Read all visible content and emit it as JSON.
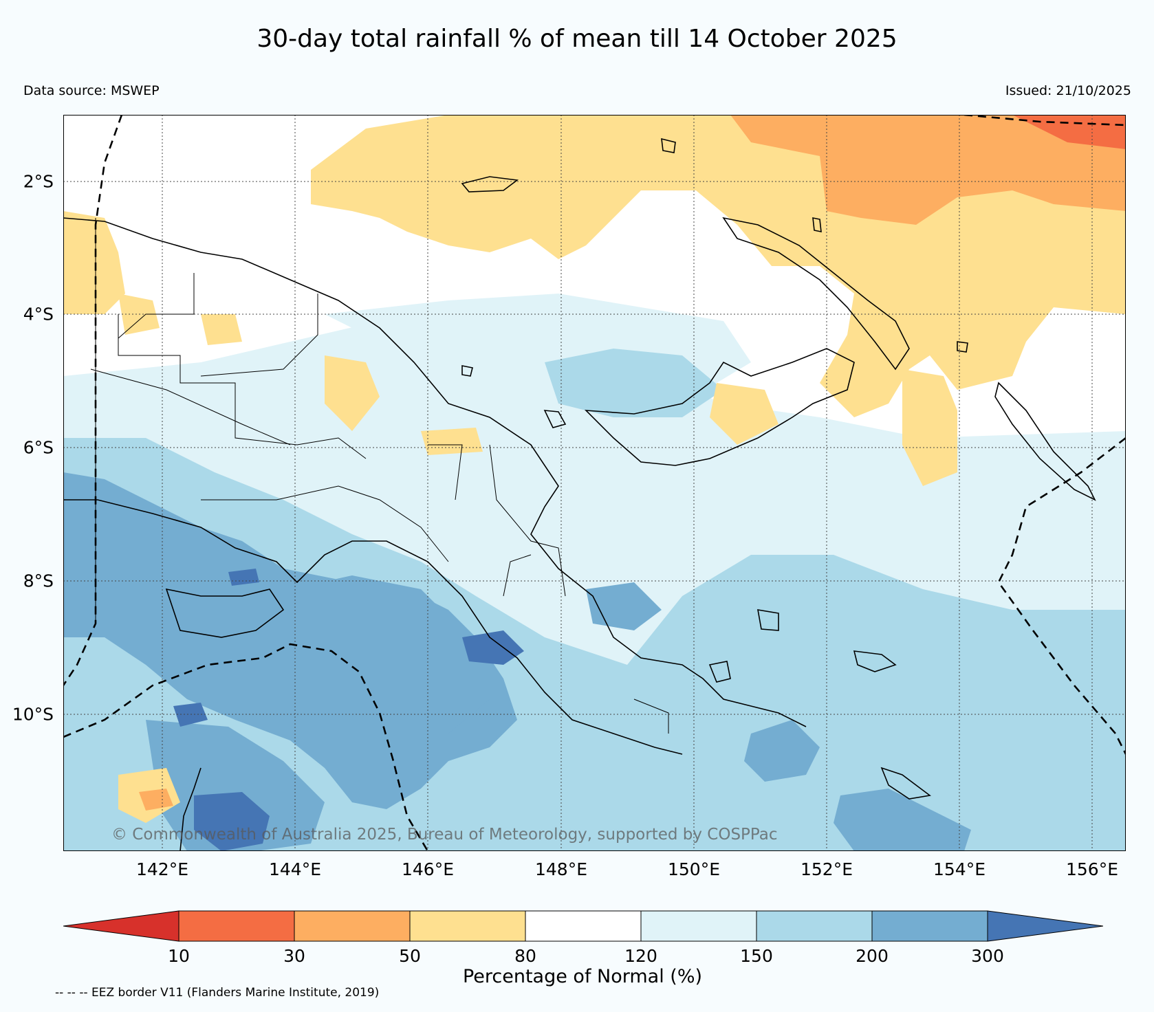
{
  "title": "30-day total rainfall % of mean till 14 October 2025",
  "data_source": "Data source: MSWEP",
  "issued": "Issued: 21/10/2025",
  "copyright": "© Commonwealth of Australia 2025, Bureau of Meteorology, supported by COSPPac",
  "eez_note": "-- -- -- EEZ border V11 (Flanders Marine Institute, 2019)",
  "map": {
    "lon_range": [
      140.5,
      156.5
    ],
    "lat_range": [
      -11.9,
      -0.8
    ],
    "lat_ticks": [
      "2°S",
      "4°S",
      "6°S",
      "8°S",
      "10°S"
    ],
    "lon_ticks": [
      "142°E",
      "144°E",
      "146°E",
      "148°E",
      "150°E",
      "152°E",
      "154°E",
      "156°E"
    ],
    "gridlines": true
  },
  "colorbar": {
    "title": "Percentage of Normal (%)",
    "labels": [
      "10",
      "30",
      "50",
      "80",
      "120",
      "150",
      "200",
      "300"
    ],
    "colors": {
      "lt10": "#d7312b",
      "10_30": "#f46d43",
      "30_50": "#fdae61",
      "50_80": "#fee090",
      "80_120": "#ffffff",
      "120_150": "#e0f3f8",
      "150_200": "#abd9e9",
      "200_300": "#74add1",
      "gt300": "#4575b4"
    }
  }
}
